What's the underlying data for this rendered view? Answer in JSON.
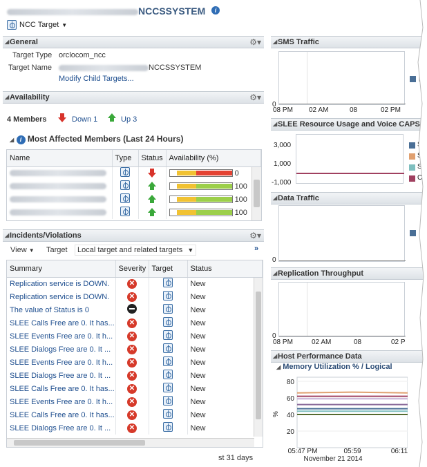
{
  "header": {
    "title": "NCCSSYSTEM",
    "menu_label": "NCC Target"
  },
  "general": {
    "title": "General",
    "target_type_label": "Target Type",
    "target_type_value": "orclocom_ncc",
    "target_name_label": "Target Name",
    "target_name_value": "NCCSSYSTEM",
    "modify_link": "Modify Child Targets..."
  },
  "availability": {
    "title": "Availability",
    "members": "4 Members",
    "down": "Down 1",
    "up": "Up 3",
    "affected_title": "Most Affected Members (Last 24 Hours)",
    "columns": [
      "Name",
      "Type",
      "Status",
      "Availability (%)"
    ],
    "rows": [
      {
        "status": "down",
        "availability": 0,
        "value": "0"
      },
      {
        "status": "up",
        "availability": 100,
        "value": "100"
      },
      {
        "status": "up",
        "availability": 100,
        "value": "100"
      },
      {
        "status": "up",
        "availability": 100,
        "value": "100"
      }
    ]
  },
  "incidents": {
    "title": "Incidents/Violations",
    "view_label": "View",
    "target_label": "Target",
    "target_select": "Local target and related targets",
    "columns": [
      "Summary",
      "Severity",
      "Target",
      "Status"
    ],
    "rows": [
      {
        "summary": "Replication service is DOWN.",
        "severity": "critical",
        "status": "New"
      },
      {
        "summary": "Replication service is DOWN.",
        "severity": "critical",
        "status": "New"
      },
      {
        "summary": "The value of Status is 0",
        "severity": "fatal",
        "status": "New"
      },
      {
        "summary": "SLEE Calls Free are 0. It has...",
        "severity": "critical",
        "status": "New"
      },
      {
        "summary": "SLEE Events Free are 0. It h...",
        "severity": "critical",
        "status": "New"
      },
      {
        "summary": "SLEE Dialogs Free are 0. It ...",
        "severity": "critical",
        "status": "New"
      },
      {
        "summary": "SLEE Events Free are 0. It h...",
        "severity": "critical",
        "status": "New"
      },
      {
        "summary": "SLEE Dialogs Free are 0. It ...",
        "severity": "critical",
        "status": "New"
      },
      {
        "summary": "SLEE Calls Free are 0. It has...",
        "severity": "critical",
        "status": "New"
      },
      {
        "summary": "SLEE Events Free are 0. It h...",
        "severity": "critical",
        "status": "New"
      },
      {
        "summary": "SLEE Calls Free are 0. It has...",
        "severity": "critical",
        "status": "New"
      },
      {
        "summary": "SLEE Dialogs Free are 0. It ...",
        "severity": "critical",
        "status": "New"
      }
    ],
    "footer_text": "st 31 days"
  },
  "sms": {
    "title": "SMS Traffic",
    "y0": "0",
    "x_ticks": [
      "08 PM",
      "02 AM",
      "08",
      "02 PM"
    ],
    "legend": "M"
  },
  "slee": {
    "title": "SLEE Resource Usage and Voice CAPS",
    "y_ticks": [
      "3,000",
      "1,000",
      "-1,000"
    ],
    "legend": [
      "SL",
      "SL",
      "SL",
      "C"
    ],
    "legend_colors": [
      "#4a6f96",
      "#e0a070",
      "#7fbfbf",
      "#a04060"
    ]
  },
  "data_traffic": {
    "title": "Data Traffic",
    "y0": "0"
  },
  "replication": {
    "title": "Replication Throughput",
    "y0": "0",
    "x_ticks": [
      "08 PM",
      "02 AM",
      "08",
      "02 P"
    ]
  },
  "host": {
    "title": "Host Performance Data",
    "chart_title": "Memory Utilization % / Logical",
    "y_ticks": [
      "80",
      "60",
      "40",
      "20"
    ],
    "ylabel": "%",
    "x_ticks": [
      "05:47 PM",
      "05:59",
      "06:11"
    ],
    "date": "November 21 2014"
  },
  "chart_data": {
    "type": "line",
    "title": "Memory Utilization % / Logical",
    "ylabel": "%",
    "x": [
      "05:47 PM",
      "05:59",
      "06:11"
    ],
    "ylim": [
      0,
      80
    ],
    "series": [
      {
        "values": [
          66,
          67,
          66
        ]
      },
      {
        "values": [
          62,
          62,
          62
        ]
      },
      {
        "values": [
          59,
          59,
          59
        ]
      },
      {
        "values": [
          52,
          52,
          52
        ]
      },
      {
        "values": [
          47,
          47,
          47
        ]
      },
      {
        "values": [
          44,
          44,
          44
        ]
      },
      {
        "values": [
          40,
          40,
          40
        ]
      }
    ]
  }
}
